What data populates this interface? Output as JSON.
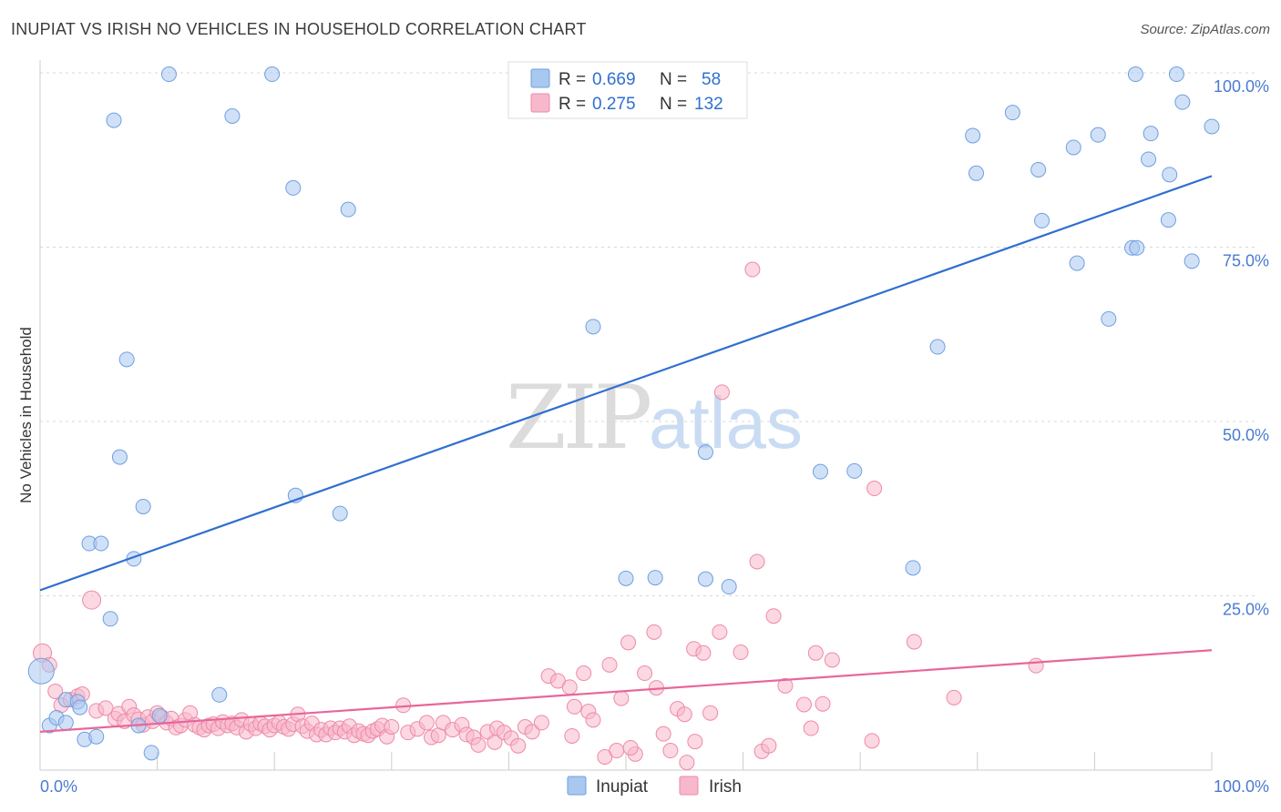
{
  "header": {
    "title": "INUPIAT VS IRISH NO VEHICLES IN HOUSEHOLD CORRELATION CHART",
    "source": "Source: ZipAtlas.com"
  },
  "watermark": {
    "zip": "ZIP",
    "atlas": "atlas"
  },
  "legend_top": [
    {
      "r_label": "R =",
      "r_value": "0.669",
      "n_label": "N =",
      "n_value": "58",
      "color": "#a9c8f0"
    },
    {
      "r_label": "R =",
      "r_value": "0.275",
      "n_label": "N =",
      "n_value": "132",
      "color": "#f7b8cb"
    }
  ],
  "legend_bottom": [
    {
      "label": "Inupiat",
      "color": "#a9c8f0"
    },
    {
      "label": "Irish",
      "color": "#f7b8cb"
    }
  ],
  "chart_data": {
    "type": "scatter",
    "title": "INUPIAT VS IRISH NO VEHICLES IN HOUSEHOLD CORRELATION CHART",
    "xlabel": "",
    "ylabel": "No Vehicles in Household",
    "xlim": [
      0,
      100
    ],
    "ylim": [
      0,
      100
    ],
    "x_tick_labels": [
      "0.0%",
      "100.0%"
    ],
    "y_ticks": [
      25,
      50,
      75,
      100
    ],
    "y_tick_labels": [
      "25.0%",
      "50.0%",
      "75.0%",
      "100.0%"
    ],
    "grid": "horizontal dashed",
    "legend_position": "top-center",
    "series": [
      {
        "name": "Inupiat",
        "color": "#a9c8f0",
        "stroke": "#6f9fe0",
        "trend_color": "#2f6fd0",
        "r": 0.669,
        "n": 58,
        "trend": [
          [
            0,
            25.8
          ],
          [
            100,
            85.2
          ]
        ],
        "points": [
          [
            0.1,
            14.2
          ],
          [
            0.8,
            6.4
          ],
          [
            1.4,
            7.5
          ],
          [
            2.2,
            10.1
          ],
          [
            2.2,
            6.8
          ],
          [
            3.2,
            9.8
          ],
          [
            3.4,
            9.0
          ],
          [
            3.8,
            4.4
          ],
          [
            4.2,
            32.5
          ],
          [
            4.8,
            4.8
          ],
          [
            5.2,
            32.5
          ],
          [
            6.0,
            21.7
          ],
          [
            6.3,
            93.2
          ],
          [
            7.4,
            58.9
          ],
          [
            6.8,
            44.9
          ],
          [
            8.0,
            30.3
          ],
          [
            8.4,
            6.4
          ],
          [
            8.8,
            37.8
          ],
          [
            9.5,
            2.5
          ],
          [
            10.2,
            7.8
          ],
          [
            11.0,
            99.8
          ],
          [
            16.4,
            93.8
          ],
          [
            15.3,
            10.8
          ],
          [
            19.8,
            99.8
          ],
          [
            21.6,
            83.5
          ],
          [
            21.8,
            39.4
          ],
          [
            26.3,
            80.4
          ],
          [
            25.6,
            36.8
          ],
          [
            47.2,
            63.6
          ],
          [
            50.0,
            27.5
          ],
          [
            52.5,
            27.6
          ],
          [
            56.8,
            27.4
          ],
          [
            56.8,
            45.6
          ],
          [
            58.8,
            26.3
          ],
          [
            66.6,
            42.8
          ],
          [
            69.5,
            42.9
          ],
          [
            74.5,
            29.0
          ],
          [
            76.6,
            60.7
          ],
          [
            79.6,
            91.0
          ],
          [
            79.9,
            85.6
          ],
          [
            83.0,
            94.3
          ],
          [
            85.2,
            86.1
          ],
          [
            85.5,
            78.8
          ],
          [
            88.2,
            89.3
          ],
          [
            88.5,
            72.7
          ],
          [
            90.3,
            91.1
          ],
          [
            91.2,
            64.7
          ],
          [
            93.2,
            74.9
          ],
          [
            93.6,
            74.9
          ],
          [
            93.5,
            99.8
          ],
          [
            94.6,
            87.6
          ],
          [
            94.8,
            91.3
          ],
          [
            96.4,
            85.4
          ],
          [
            96.3,
            78.9
          ],
          [
            97.0,
            99.8
          ],
          [
            97.5,
            95.8
          ],
          [
            98.3,
            73.0
          ],
          [
            100.0,
            92.3
          ]
        ]
      },
      {
        "name": "Irish",
        "color": "#f7b8cb",
        "stroke": "#ee8aa8",
        "trend_color": "#e8669a",
        "r": 0.275,
        "n": 132,
        "trend": [
          [
            0,
            5.5
          ],
          [
            100,
            17.2
          ]
        ],
        "points": [
          [
            0.2,
            16.8
          ],
          [
            0.8,
            15.1
          ],
          [
            1.3,
            11.3
          ],
          [
            1.8,
            9.3
          ],
          [
            2.6,
            10.1
          ],
          [
            3.2,
            10.6
          ],
          [
            3.6,
            10.9
          ],
          [
            4.4,
            24.4
          ],
          [
            4.8,
            8.5
          ],
          [
            5.6,
            8.9
          ],
          [
            6.4,
            7.4
          ],
          [
            6.7,
            8.1
          ],
          [
            7.2,
            7.0
          ],
          [
            7.6,
            9.1
          ],
          [
            8.0,
            7.9
          ],
          [
            8.4,
            7.3
          ],
          [
            8.8,
            6.5
          ],
          [
            9.2,
            7.6
          ],
          [
            9.6,
            7.0
          ],
          [
            10.0,
            8.2
          ],
          [
            10.4,
            7.6
          ],
          [
            10.8,
            6.8
          ],
          [
            11.2,
            7.4
          ],
          [
            11.6,
            6.1
          ],
          [
            12.0,
            6.4
          ],
          [
            12.4,
            7.2
          ],
          [
            12.8,
            8.2
          ],
          [
            13.2,
            6.5
          ],
          [
            13.6,
            6.1
          ],
          [
            14.0,
            5.8
          ],
          [
            14.4,
            6.4
          ],
          [
            14.8,
            6.6
          ],
          [
            15.2,
            6.0
          ],
          [
            15.6,
            6.9
          ],
          [
            16.0,
            6.4
          ],
          [
            16.4,
            6.7
          ],
          [
            16.8,
            6.1
          ],
          [
            17.2,
            7.2
          ],
          [
            17.6,
            5.5
          ],
          [
            18.0,
            6.6
          ],
          [
            18.4,
            6.0
          ],
          [
            18.8,
            6.7
          ],
          [
            19.2,
            6.3
          ],
          [
            19.6,
            5.8
          ],
          [
            20.0,
            6.4
          ],
          [
            20.4,
            6.8
          ],
          [
            20.8,
            6.2
          ],
          [
            21.2,
            5.9
          ],
          [
            21.6,
            6.6
          ],
          [
            22.0,
            8.0
          ],
          [
            22.4,
            6.3
          ],
          [
            22.8,
            5.6
          ],
          [
            23.2,
            6.7
          ],
          [
            23.6,
            5.1
          ],
          [
            24.0,
            5.8
          ],
          [
            24.4,
            5.1
          ],
          [
            24.8,
            6.0
          ],
          [
            25.2,
            5.4
          ],
          [
            25.6,
            6.0
          ],
          [
            26.0,
            5.5
          ],
          [
            26.4,
            6.3
          ],
          [
            26.8,
            5.0
          ],
          [
            27.2,
            5.6
          ],
          [
            27.6,
            5.2
          ],
          [
            28.0,
            5.0
          ],
          [
            28.4,
            5.6
          ],
          [
            28.8,
            5.9
          ],
          [
            29.2,
            6.4
          ],
          [
            29.6,
            4.8
          ],
          [
            30.0,
            6.2
          ],
          [
            31.0,
            9.3
          ],
          [
            31.4,
            5.4
          ],
          [
            32.2,
            5.9
          ],
          [
            33.0,
            6.8
          ],
          [
            33.4,
            4.7
          ],
          [
            34.0,
            5.0
          ],
          [
            34.4,
            6.8
          ],
          [
            35.2,
            5.8
          ],
          [
            36.0,
            6.5
          ],
          [
            36.4,
            5.1
          ],
          [
            37.0,
            4.7
          ],
          [
            37.4,
            3.6
          ],
          [
            38.2,
            5.5
          ],
          [
            38.8,
            4.0
          ],
          [
            39.0,
            6.0
          ],
          [
            39.6,
            5.4
          ],
          [
            40.2,
            4.6
          ],
          [
            40.8,
            3.5
          ],
          [
            41.4,
            6.2
          ],
          [
            42.0,
            5.5
          ],
          [
            42.8,
            6.8
          ],
          [
            43.4,
            13.5
          ],
          [
            44.2,
            12.8
          ],
          [
            45.2,
            11.9
          ],
          [
            45.4,
            4.9
          ],
          [
            45.6,
            9.1
          ],
          [
            46.4,
            13.9
          ],
          [
            46.8,
            8.4
          ],
          [
            47.2,
            7.2
          ],
          [
            48.2,
            1.9
          ],
          [
            48.6,
            15.1
          ],
          [
            49.2,
            2.8
          ],
          [
            49.6,
            10.3
          ],
          [
            50.2,
            18.3
          ],
          [
            50.8,
            2.3
          ],
          [
            50.4,
            3.2
          ],
          [
            51.6,
            13.9
          ],
          [
            52.4,
            19.8
          ],
          [
            52.6,
            11.8
          ],
          [
            53.2,
            5.2
          ],
          [
            53.8,
            2.8
          ],
          [
            54.4,
            8.8
          ],
          [
            55.0,
            8.0
          ],
          [
            55.8,
            17.4
          ],
          [
            55.9,
            4.1
          ],
          [
            55.2,
            1.1
          ],
          [
            56.6,
            16.8
          ],
          [
            57.2,
            8.2
          ],
          [
            58.0,
            19.8
          ],
          [
            58.2,
            54.2
          ],
          [
            59.8,
            16.9
          ],
          [
            60.8,
            71.8
          ],
          [
            61.2,
            29.9
          ],
          [
            61.6,
            2.7
          ],
          [
            62.2,
            3.5
          ],
          [
            62.6,
            22.1
          ],
          [
            63.6,
            12.1
          ],
          [
            65.2,
            9.4
          ],
          [
            65.8,
            6.0
          ],
          [
            66.2,
            16.8
          ],
          [
            66.8,
            9.5
          ],
          [
            67.6,
            15.8
          ],
          [
            71.2,
            40.4
          ],
          [
            71.0,
            4.2
          ],
          [
            74.6,
            18.4
          ],
          [
            78.0,
            10.4
          ],
          [
            85.0,
            15.0
          ]
        ]
      }
    ]
  }
}
